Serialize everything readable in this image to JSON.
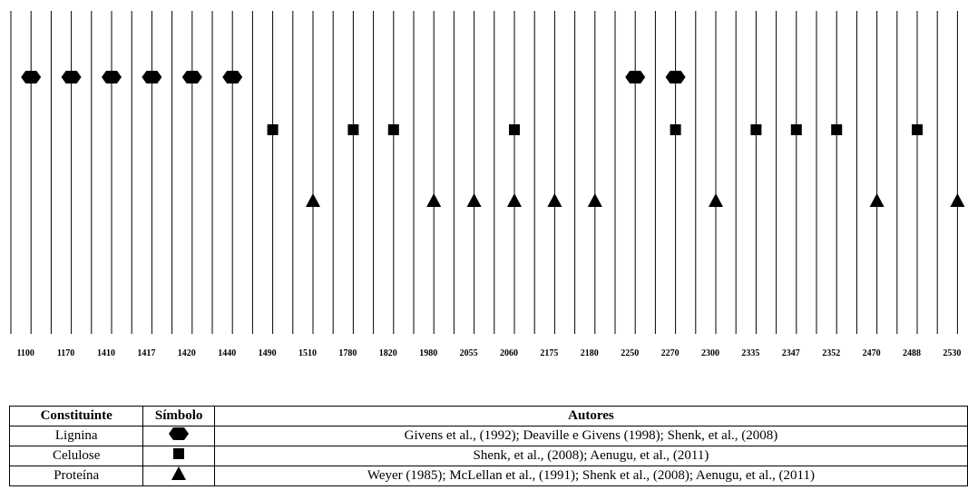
{
  "diagram": {
    "wavelengths": [
      1100,
      1170,
      1410,
      1417,
      1420,
      1440,
      1490,
      1510,
      1780,
      1820,
      1980,
      2055,
      2060,
      2175,
      2180,
      2250,
      2270,
      2300,
      2335,
      2347,
      2352,
      2470,
      2488,
      2530
    ]
  },
  "table": {
    "header": [
      "Constituinte",
      "Símbolo",
      "Autores"
    ],
    "rows": [
      {
        "constituent": "Lignina",
        "marker": "hexagon",
        "authors": "Givens et al., (1992); Deaville e Givens (1998); Shenk, et al., (2008)",
        "wavelengths": [
          1100,
          1170,
          1410,
          1417,
          1420,
          1440,
          2250,
          2270
        ]
      },
      {
        "constituent": "Celulose",
        "marker": "square",
        "authors": "Shenk, et al., (2008); Aenugu, et al., (2011)",
        "wavelengths": [
          1490,
          1780,
          1820,
          2060,
          2270,
          2335,
          2347,
          2352,
          2488
        ]
      },
      {
        "constituent": "Proteína",
        "marker": "triangle",
        "authors": "Weyer (1985); McLellan et al., (1991); Shenk et al., (2008); Aenugu, et al., (2011)",
        "wavelengths": [
          1510,
          1980,
          2055,
          2060,
          2175,
          2180,
          2300,
          2470,
          2530
        ]
      }
    ]
  }
}
